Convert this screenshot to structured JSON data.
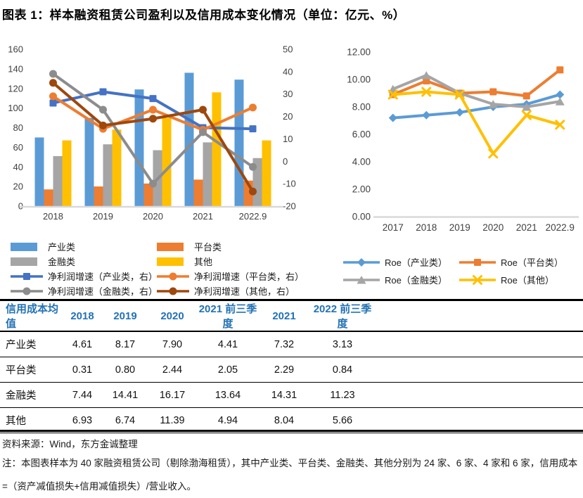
{
  "title": "图表 1：样本融资租赁公司盈利以及信用成本变化情况（单位：亿元、%）",
  "colors": {
    "bar_blue": "#5B9BD5",
    "bar_orange": "#ED7D31",
    "bar_gray": "#A5A5A5",
    "bar_yellow": "#FFC000",
    "line_blue": "#4472C4",
    "line_gray": "#8C8C8C",
    "line_brown": "#9E480E",
    "axis_line": "#D9D9D9",
    "table_header_text": "#2272B5"
  },
  "chart_data": [
    {
      "type": "bar",
      "subtype": "combo-bar-line-dual-axis",
      "categories": [
        "2018",
        "2019",
        "2020",
        "2021",
        "2022.9"
      ],
      "left_axis": {
        "min": 0,
        "max": 160,
        "ticks": [
          "0",
          "20",
          "40",
          "60",
          "80",
          "100",
          "120",
          "140",
          "160"
        ]
      },
      "right_axis": {
        "min": -20,
        "max": 50,
        "ticks": [
          "-20",
          "-10",
          "0",
          "10",
          "20",
          "30",
          "40",
          "50"
        ]
      },
      "bar_series": [
        {
          "id": "industry",
          "name": "产业类",
          "color": "#5B9BD5",
          "values": [
            70,
            90,
            119,
            136,
            129
          ]
        },
        {
          "id": "platform",
          "name": "平台类",
          "color": "#ED7D31",
          "values": [
            17,
            20,
            23,
            27,
            26
          ]
        },
        {
          "id": "financial",
          "name": "金融类",
          "color": "#A5A5A5",
          "values": [
            51,
            63,
            57,
            65,
            49
          ]
        },
        {
          "id": "other",
          "name": "其他",
          "color": "#FFC000",
          "values": [
            67,
            78,
            90,
            116,
            67
          ]
        }
      ],
      "line_series": [
        {
          "id": "profit-growth-industry",
          "name": "净利润增速（产业类，右）",
          "color": "#4472C4",
          "marker": "square",
          "values": [
            26,
            31,
            28,
            15,
            14.5
          ]
        },
        {
          "id": "profit-growth-platform",
          "name": "净利润增速（平台类，右）",
          "color": "#ED7D31",
          "marker": "circle",
          "values": [
            29,
            14.5,
            23,
            14,
            24
          ]
        },
        {
          "id": "profit-growth-financial",
          "name": "净利润增速（金融类，右）",
          "color": "#8C8C8C",
          "marker": "circle",
          "values": [
            39,
            23,
            -10,
            13,
            -2.5
          ]
        },
        {
          "id": "profit-growth-other",
          "name": "净利润增速（其他，右）",
          "color": "#9E480E",
          "marker": "circle",
          "values": [
            35,
            16,
            19,
            23,
            -13.5
          ]
        }
      ],
      "grid": "off",
      "legend_position": "bottom"
    },
    {
      "type": "line",
      "categories": [
        "2017",
        "2018",
        "2019",
        "2020",
        "2021",
        "2022.9"
      ],
      "y_axis": {
        "min": 0,
        "max": 12,
        "ticks": [
          "0.00",
          "2.00",
          "4.00",
          "6.00",
          "8.00",
          "10.00",
          "12.00"
        ]
      },
      "series": [
        {
          "id": "roe-industry",
          "name": "Roe（产业类）",
          "color": "#5B9BD5",
          "marker": "diamond",
          "values": [
            7.2,
            7.4,
            7.6,
            8.0,
            8.2,
            8.9
          ]
        },
        {
          "id": "roe-platform",
          "name": "Roe（平台类）",
          "color": "#ED7D31",
          "marker": "square",
          "values": [
            8.9,
            9.9,
            9.0,
            9.1,
            8.8,
            10.7
          ]
        },
        {
          "id": "roe-financial",
          "name": "Roe（金融类）",
          "color": "#A5A5A5",
          "marker": "triangle",
          "values": [
            9.3,
            10.3,
            9.0,
            8.2,
            8.0,
            8.4
          ]
        },
        {
          "id": "roe-other",
          "name": "Roe（其他）",
          "color": "#FFC000",
          "marker": "x",
          "values": [
            8.9,
            9.1,
            8.9,
            4.6,
            7.4,
            6.7
          ]
        }
      ],
      "grid": "off",
      "legend_position": "bottom"
    }
  ],
  "table": {
    "header": [
      "信用成本均值",
      "2018",
      "2019",
      "2020",
      "2021 前三季度",
      "2021",
      "2022 前三季度"
    ],
    "rows": [
      {
        "label": "产业类",
        "values": [
          "4.61",
          "8.17",
          "7.90",
          "4.41",
          "7.32",
          "3.13"
        ]
      },
      {
        "label": "平台类",
        "values": [
          "0.31",
          "0.80",
          "2.44",
          "2.05",
          "2.29",
          "0.84"
        ]
      },
      {
        "label": "金融类",
        "values": [
          "7.44",
          "14.41",
          "16.17",
          "13.64",
          "14.31",
          "11.23"
        ]
      },
      {
        "label": "其他",
        "values": [
          "6.93",
          "6.74",
          "11.39",
          "4.94",
          "8.04",
          "5.66"
        ]
      }
    ]
  },
  "source": "资料来源：Wind，东方金诚整理",
  "note": "注：本图表样本为 40 家融资租赁公司（剔除渤海租赁），其中产业类、平台类、金融类、其他分别为 24 家、6 家、4 家和 6 家，信用成本=（资产减值损失+信用减值损失）/营业收入。"
}
